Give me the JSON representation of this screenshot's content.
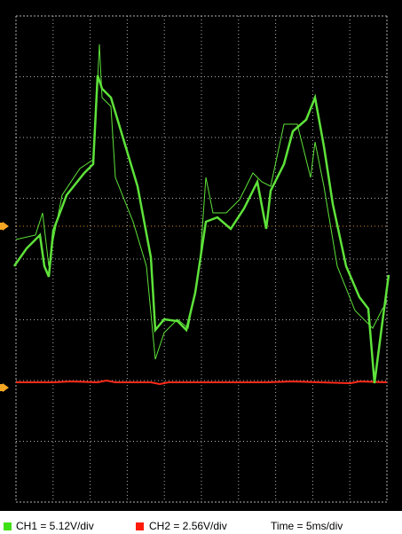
{
  "footer": {
    "ch1": "CH1 = 5.12V/div",
    "ch2": "CH2 = 2.56V/div",
    "time": "Time = 5ms/div"
  }
}
